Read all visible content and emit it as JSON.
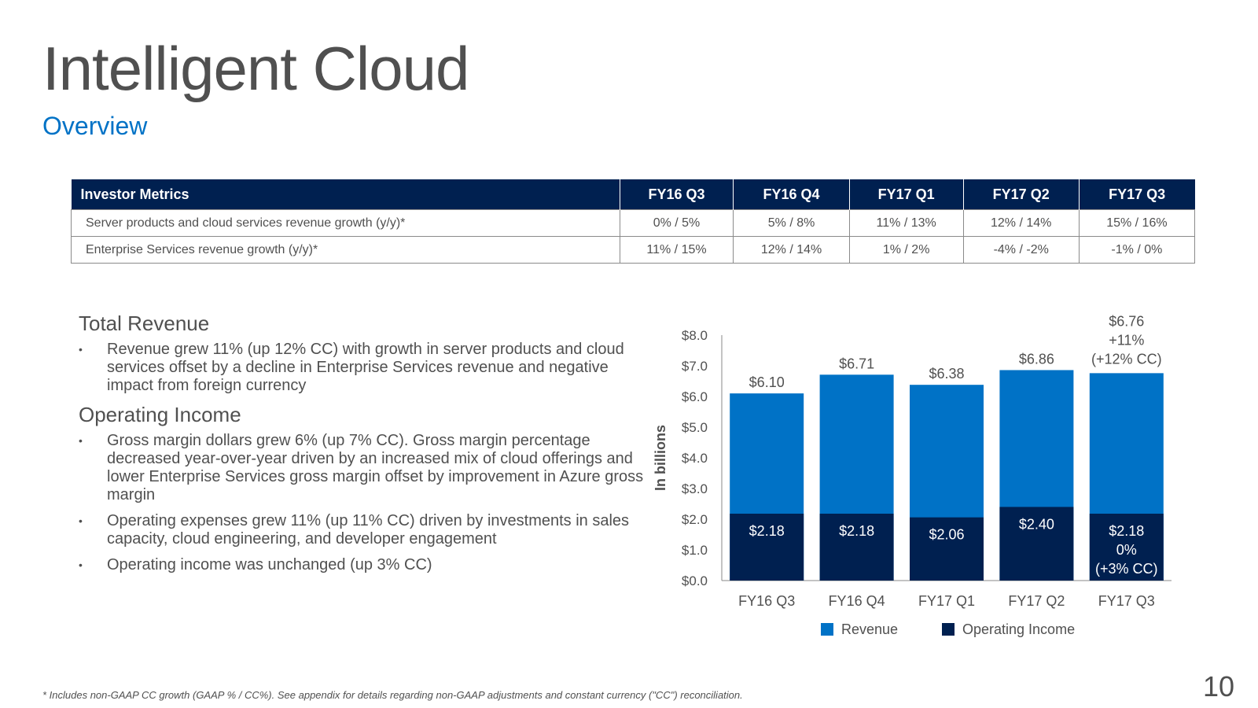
{
  "title": "Intelligent Cloud",
  "subtitle": "Overview",
  "metrics_table": {
    "headers": [
      "Investor Metrics",
      "FY16 Q3",
      "FY16 Q4",
      "FY17 Q1",
      "FY17 Q2",
      "FY17 Q3"
    ],
    "rows": [
      [
        "Server products and cloud services revenue growth (y/y)*",
        "0% / 5%",
        "5% / 8%",
        "11% / 13%",
        "12% / 14%",
        "15% / 16%"
      ],
      [
        "Enterprise Services revenue growth (y/y)*",
        "11% / 15%",
        "12% / 14%",
        "1% / 2%",
        "-4% / -2%",
        "-1% / 0%"
      ]
    ]
  },
  "commentary": {
    "revenue_heading": "Total Revenue",
    "revenue_bullets": [
      "Revenue grew 11% (up 12% CC) with growth in server products and cloud services offset by a decline in Enterprise Services revenue and negative impact from foreign currency"
    ],
    "oi_heading": "Operating Income",
    "oi_bullets": [
      "Gross margin dollars grew 6% (up 7% CC). Gross margin percentage decreased year-over-year driven by an increased mix of cloud offerings and lower Enterprise Services gross margin offset by improvement in Azure gross margin",
      "Operating expenses grew 11% (up 11% CC) driven by investments in sales capacity, cloud engineering, and developer engagement",
      "Operating income was unchanged (up 3% CC)"
    ]
  },
  "chart_data": {
    "type": "bar",
    "categories": [
      "FY16 Q3",
      "FY16 Q4",
      "FY17 Q1",
      "FY17 Q2",
      "FY17 Q3"
    ],
    "series": [
      {
        "name": "Revenue",
        "values": [
          6.1,
          6.71,
          6.38,
          6.86,
          6.76
        ],
        "labels": [
          "$6.10",
          "$6.71",
          "$6.38",
          "$6.86",
          "$6.76"
        ],
        "color": "#0072c6"
      },
      {
        "name": "Operating Income",
        "values": [
          2.18,
          2.18,
          2.06,
          2.4,
          2.18
        ],
        "labels": [
          "$2.18",
          "$2.18",
          "$2.06",
          "$2.40",
          "$2.18"
        ],
        "color": "#002050"
      }
    ],
    "ylabel": "In billions",
    "ylim": [
      0,
      8
    ],
    "yticks": [
      "$0.0",
      "$1.0",
      "$2.0",
      "$3.0",
      "$4.0",
      "$5.0",
      "$6.0",
      "$7.0",
      "$8.0"
    ],
    "annotations": {
      "revenue_growth": [
        "+11%",
        "(+12% CC)"
      ],
      "oi_growth": [
        "0%",
        "(+3% CC)"
      ]
    },
    "legend_position": "bottom",
    "grid": false
  },
  "footnote": "* Includes non-GAAP CC growth (GAAP % / CC%). See appendix for details regarding non-GAAP adjustments and constant currency (\"CC\") reconciliation.",
  "page_number": "10"
}
